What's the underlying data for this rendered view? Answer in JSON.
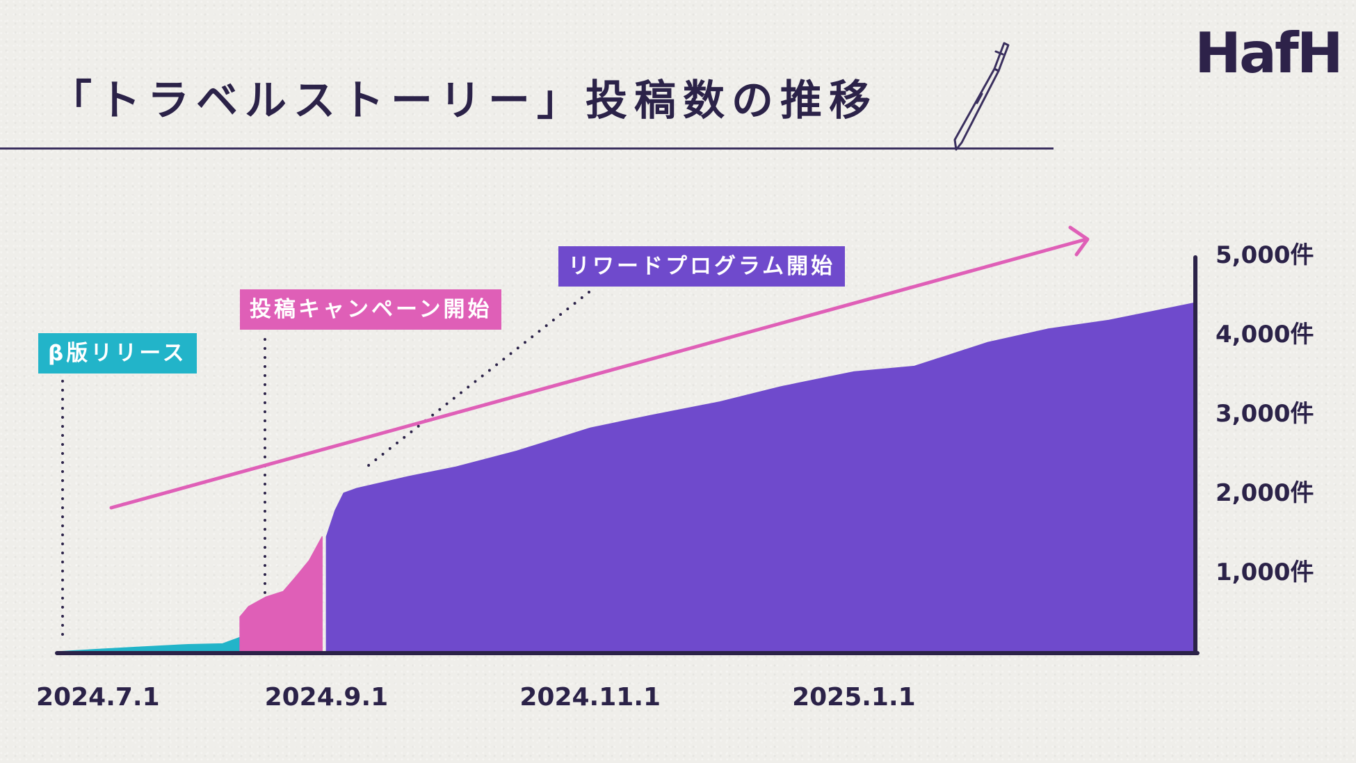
{
  "page": {
    "title": "「トラベルストーリー」投稿数の推移",
    "logo": "HafH"
  },
  "annotations": [
    {
      "key": "beta",
      "text": "β版リリース",
      "date": "2024.7.1",
      "color": "#22b4c9"
    },
    {
      "key": "campaign",
      "text": "投稿キャンペーン開始",
      "date": "2024.8.12",
      "color": "#df5fb7"
    },
    {
      "key": "reward",
      "text": "リワードプログラム開始",
      "date": "2024.9.1",
      "color": "#6f4acc"
    }
  ],
  "colors": {
    "beta": "#22b4c9",
    "campaign": "#df5fb7",
    "reward": "#6f4acc",
    "axis": "#2b2248",
    "trend_arrow": "#df5fb7",
    "background": "#efeeea"
  },
  "chart_data": {
    "type": "area",
    "title": "「トラベルストーリー」投稿数の推移",
    "x_axis": {
      "ticks": [
        "2024.7.1",
        "2024.9.1",
        "2024.11.1",
        "2025.1.1"
      ],
      "range": [
        "2024.7.1",
        "2025.3.21"
      ]
    },
    "y_axis": {
      "ticks": [
        "1,000件",
        "2,000件",
        "3,000件",
        "4,000件",
        "5,000件"
      ],
      "tick_values": [
        1000,
        2000,
        3000,
        4000,
        5000
      ],
      "range": [
        0,
        5000
      ],
      "position": "right"
    },
    "grid": false,
    "trend_arrow": true,
    "series": [
      {
        "name": "β版リリース",
        "color": "#22b4c9",
        "x": [
          "2024.7.1",
          "2024.7.10",
          "2024.7.20",
          "2024.7.31",
          "2024.8.8",
          "2024.8.12"
        ],
        "y": [
          0,
          30,
          60,
          90,
          100,
          180
        ]
      },
      {
        "name": "投稿キャンペーン開始",
        "color": "#df5fb7",
        "x": [
          "2024.8.12",
          "2024.8.14",
          "2024.8.18",
          "2024.8.22",
          "2024.8.25",
          "2024.8.28",
          "2024.8.31"
        ],
        "y": [
          440,
          570,
          690,
          760,
          950,
          1150,
          1450
        ]
      },
      {
        "name": "リワードプログラム開始",
        "color": "#6f4acc",
        "x": [
          "2024.9.1",
          "2024.9.3",
          "2024.9.5",
          "2024.9.8",
          "2024.9.20",
          "2024.10.1",
          "2024.10.15",
          "2024.11.1",
          "2024.11.15",
          "2024.12.1",
          "2024.12.15",
          "2025.1.1",
          "2025.1.15",
          "2025.2.1",
          "2025.2.15",
          "2025.3.1",
          "2025.3.21"
        ],
        "y": [
          1450,
          1780,
          2000,
          2060,
          2210,
          2330,
          2530,
          2820,
          2980,
          3150,
          3340,
          3530,
          3600,
          3900,
          4070,
          4180,
          4400
        ]
      }
    ]
  }
}
